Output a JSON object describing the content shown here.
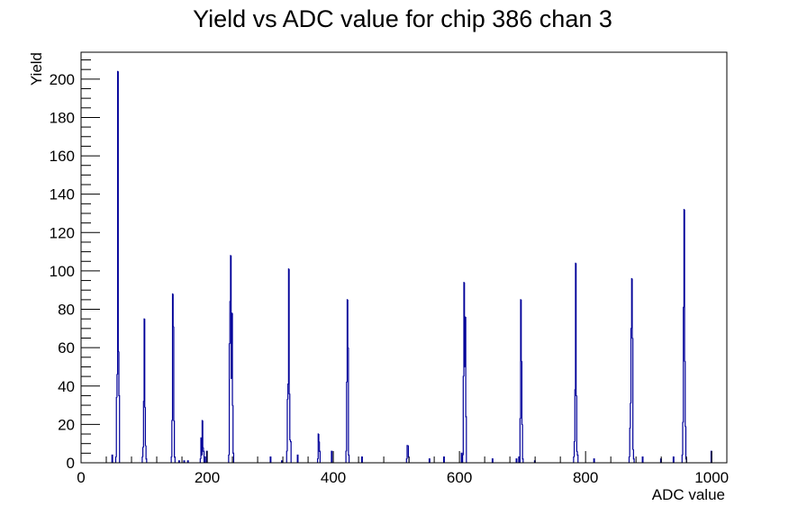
{
  "chart_data": {
    "type": "histogram",
    "title": "Yield vs ADC value for chip 386 chan 3",
    "xlabel": "ADC value",
    "ylabel": "Yield",
    "xlim": [
      0,
      1024
    ],
    "ylim": [
      0,
      214
    ],
    "x_ticks": [
      0,
      200,
      400,
      600,
      800,
      1000
    ],
    "y_ticks": [
      0,
      20,
      40,
      60,
      80,
      100,
      120,
      140,
      160,
      180,
      200
    ],
    "grid": false,
    "legend": "none",
    "line_color": "#000099",
    "bin_width": 1,
    "points": [
      [
        49,
        4
      ],
      [
        55,
        3
      ],
      [
        56,
        34
      ],
      [
        57,
        46
      ],
      [
        58,
        204
      ],
      [
        59,
        58
      ],
      [
        60,
        35
      ],
      [
        97,
        3
      ],
      [
        98,
        8
      ],
      [
        99,
        32
      ],
      [
        100,
        75
      ],
      [
        101,
        29
      ],
      [
        102,
        9
      ],
      [
        103,
        2
      ],
      [
        143,
        3
      ],
      [
        144,
        22
      ],
      [
        145,
        88
      ],
      [
        146,
        71
      ],
      [
        147,
        22
      ],
      [
        148,
        3
      ],
      [
        155,
        1
      ],
      [
        163,
        1
      ],
      [
        169,
        1
      ],
      [
        189,
        2
      ],
      [
        190,
        13
      ],
      [
        191,
        4
      ],
      [
        192,
        22
      ],
      [
        193,
        8
      ],
      [
        194,
        6
      ],
      [
        196,
        3
      ],
      [
        199,
        6
      ],
      [
        234,
        4
      ],
      [
        235,
        62
      ],
      [
        236,
        84
      ],
      [
        237,
        108
      ],
      [
        238,
        44
      ],
      [
        239,
        78
      ],
      [
        240,
        30
      ],
      [
        241,
        5
      ],
      [
        300,
        3
      ],
      [
        318,
        1
      ],
      [
        326,
        6
      ],
      [
        327,
        33
      ],
      [
        328,
        41
      ],
      [
        329,
        101
      ],
      [
        330,
        36
      ],
      [
        331,
        12
      ],
      [
        332,
        11
      ],
      [
        343,
        4
      ],
      [
        375,
        2
      ],
      [
        376,
        15
      ],
      [
        377,
        11
      ],
      [
        378,
        6
      ],
      [
        397,
        6
      ],
      [
        420,
        6
      ],
      [
        421,
        42
      ],
      [
        422,
        85
      ],
      [
        423,
        60
      ],
      [
        424,
        4
      ],
      [
        445,
        3
      ],
      [
        516,
        2
      ],
      [
        517,
        9
      ],
      [
        518,
        9
      ],
      [
        519,
        3
      ],
      [
        552,
        2
      ],
      [
        575,
        3
      ],
      [
        603,
        5
      ],
      [
        605,
        4
      ],
      [
        606,
        45
      ],
      [
        607,
        94
      ],
      [
        608,
        50
      ],
      [
        609,
        76
      ],
      [
        610,
        24
      ],
      [
        652,
        2
      ],
      [
        690,
        2
      ],
      [
        694,
        3
      ],
      [
        696,
        23
      ],
      [
        697,
        85
      ],
      [
        698,
        53
      ],
      [
        699,
        20
      ],
      [
        700,
        2
      ],
      [
        719,
        1
      ],
      [
        781,
        3
      ],
      [
        782,
        11
      ],
      [
        783,
        38
      ],
      [
        784,
        104
      ],
      [
        785,
        35
      ],
      [
        786,
        6
      ],
      [
        787,
        4
      ],
      [
        813,
        2
      ],
      [
        869,
        3
      ],
      [
        870,
        18
      ],
      [
        871,
        31
      ],
      [
        872,
        70
      ],
      [
        873,
        96
      ],
      [
        874,
        65
      ],
      [
        875,
        7
      ],
      [
        876,
        2
      ],
      [
        890,
        3
      ],
      [
        919,
        2
      ],
      [
        939,
        3
      ],
      [
        953,
        4
      ],
      [
        954,
        21
      ],
      [
        955,
        81
      ],
      [
        956,
        132
      ],
      [
        957,
        53
      ],
      [
        958,
        19
      ],
      [
        959,
        2
      ],
      [
        999,
        6
      ]
    ]
  }
}
